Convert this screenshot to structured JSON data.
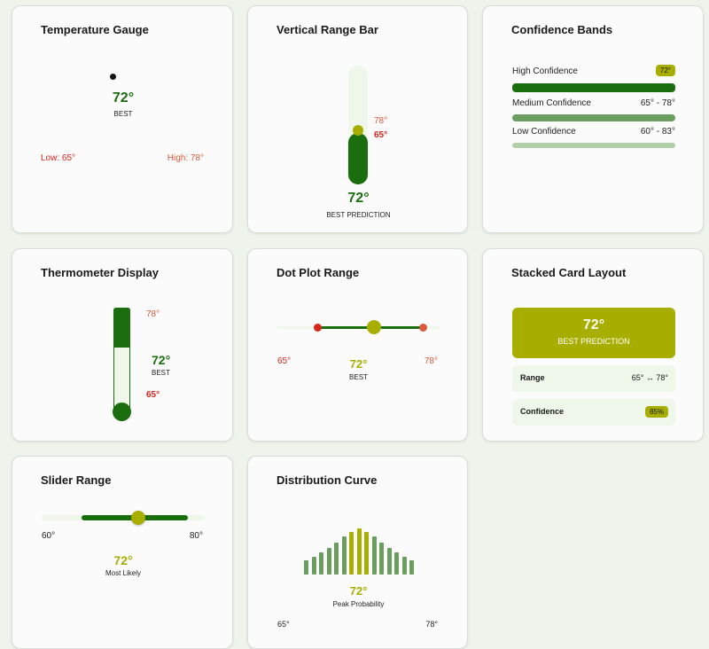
{
  "colors": {
    "dark_green": "#1b6e0d",
    "mid_green": "#6b9e5e",
    "light_green": "#b3cfa9",
    "pale_green": "#eef7ea",
    "olive": "#a8ae00",
    "red": "#d6261c",
    "orange": "#d95a3a"
  },
  "temperature_gauge": {
    "title": "Temperature Gauge",
    "value": "72°",
    "value_label": "BEST",
    "low": "Low: 65°",
    "high": "High: 78°"
  },
  "vertical_range_bar": {
    "title": "Vertical Range Bar",
    "high": "78°",
    "low": "65°",
    "value": "72°",
    "value_label": "BEST PREDICTION"
  },
  "confidence_bands": {
    "title": "Confidence Bands",
    "bands": [
      {
        "label": "High Confidence",
        "value": "72°"
      },
      {
        "label": "Medium Confidence",
        "value": "65° - 78°"
      },
      {
        "label": "Low Confidence",
        "value": "60° - 83°"
      }
    ]
  },
  "thermometer_display": {
    "title": "Thermometer Display",
    "high": "78°",
    "value": "72°",
    "value_label": "BEST",
    "low": "65°"
  },
  "dot_plot_range": {
    "title": "Dot Plot Range",
    "low": "65°",
    "value": "72°",
    "value_label": "BEST",
    "high": "78°"
  },
  "stacked_card_layout": {
    "title": "Stacked Card Layout",
    "value": "72°",
    "value_label": "BEST PREDICTION",
    "range_label": "Range",
    "range_value": "65° ↔ 78°",
    "confidence_label": "Confidence",
    "confidence_value": "85%"
  },
  "slider_range": {
    "title": "Slider Range",
    "min": "60°",
    "max": "80°",
    "value": "72°",
    "value_label": "Most Likely"
  },
  "distribution_curve": {
    "title": "Distribution Curve",
    "value": "72°",
    "value_label": "Peak Probability",
    "low": "65°",
    "high": "78°",
    "bar_levels": [
      0.3,
      0.38,
      0.48,
      0.58,
      0.7,
      0.82,
      0.92,
      1.0,
      0.92,
      0.82,
      0.7,
      0.58,
      0.48,
      0.38,
      0.3
    ],
    "highlight_bars": [
      6,
      7,
      8
    ]
  }
}
